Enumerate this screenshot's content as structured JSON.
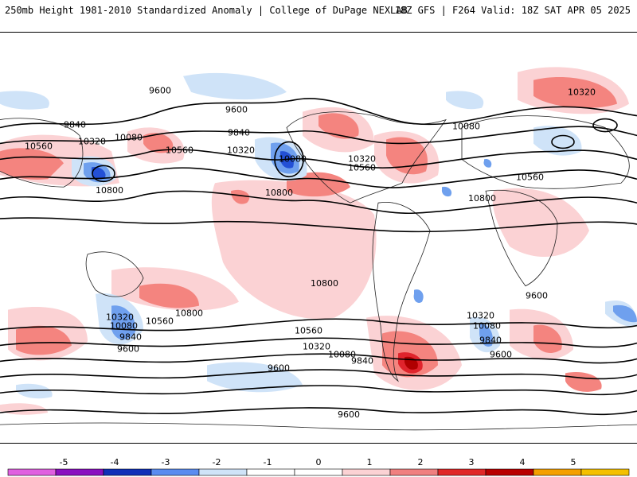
{
  "header": {
    "left": "250mb Height 1981-2010 Standardized Anomaly | College of DuPage NEXLAB",
    "right": "18Z GFS | F264 Valid: 18Z SAT APR 05 2025"
  },
  "colors": {
    "pos1": "#fbd2d4",
    "pos2": "#f4847f",
    "pos3": "#e0242c",
    "pos4": "#b00000",
    "neg1": "#cfe3f8",
    "neg2": "#6fa0ee",
    "neg3": "#2350d6",
    "contour": "#000000",
    "land": "#222222"
  },
  "contours": [
    {
      "label": "9600"
    },
    {
      "label": "9840"
    },
    {
      "label": "10080"
    },
    {
      "label": "10320"
    },
    {
      "label": "10560"
    },
    {
      "label": "10800"
    }
  ],
  "contour_labels": [
    "9600",
    "9600",
    "9840",
    "9840",
    "10320",
    "10080",
    "10560",
    "10320",
    "10080",
    "10560",
    "10800",
    "10800",
    "10320",
    "10560",
    "10800",
    "10320",
    "10080",
    "10560",
    "10800",
    "10560",
    "10320",
    "10080",
    "9840",
    "9600",
    "10800",
    "10560",
    "10320",
    "10080",
    "9840",
    "9600",
    "9600",
    "9600",
    "10320",
    "10080",
    "9840",
    "9600"
  ],
  "colorbar": {
    "ticks": [
      "-5",
      "-4",
      "-3",
      "-2",
      "-1",
      "0",
      "1",
      "2",
      "3",
      "4",
      "5"
    ],
    "colors": [
      "#e060e0",
      "#8a10c0",
      "#1030b8",
      "#5a8cf0",
      "#cfe3f8",
      "#ffffff",
      "#ffffff",
      "#fbd2d4",
      "#f08080",
      "#e02828",
      "#b80000",
      "#f4a000",
      "#f4c000"
    ]
  }
}
